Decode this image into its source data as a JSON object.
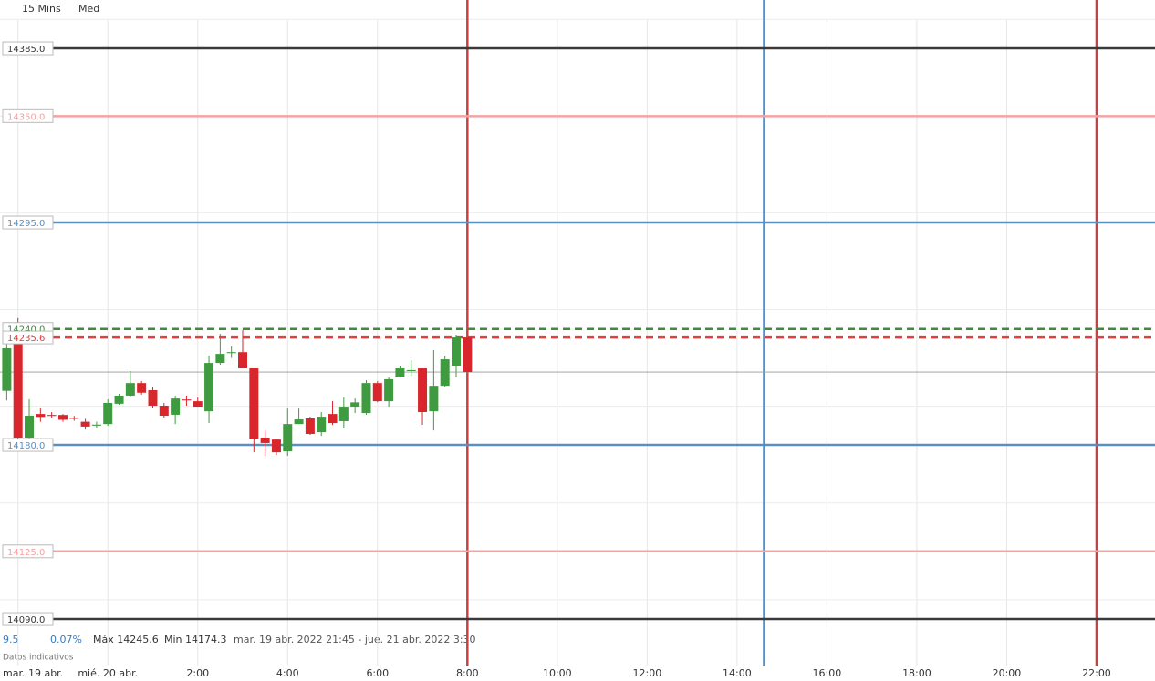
{
  "chart_data": {
    "type": "candlestick",
    "interval": "15 Mins",
    "mode": "Med",
    "info": {
      "change": "9.5",
      "change_pct": "0.07%",
      "max": "Máx 14245.6",
      "min": "Min 14174.3",
      "range": "mar. 19 abr. 2022 21:45 - jue. 21 abr. 2022 3:30",
      "note": "Datos indicativos"
    },
    "start_date_label": "mar. 19 abr.",
    "xlim": [
      -2.4,
      23.3
    ],
    "ylim": [
      14410,
      14085
    ],
    "xticks": [
      {
        "value": 0,
        "label": "mié. 20 abr."
      },
      {
        "value": 2,
        "label": "2:00"
      },
      {
        "value": 4,
        "label": "4:00"
      },
      {
        "value": 6,
        "label": "6:00"
      },
      {
        "value": 8,
        "label": "8:00"
      },
      {
        "value": 10,
        "label": "10:00"
      },
      {
        "value": 12,
        "label": "12:00"
      },
      {
        "value": 14,
        "label": "14:00"
      },
      {
        "value": 16,
        "label": "16:00"
      },
      {
        "value": 18,
        "label": "18:00"
      },
      {
        "value": 20,
        "label": "20:00"
      },
      {
        "value": 22,
        "label": "22:00"
      }
    ],
    "xgrid": [
      -2,
      0,
      2,
      4,
      6,
      8,
      10,
      12,
      14,
      16,
      18,
      20,
      22
    ],
    "ygrid": [
      14400,
      14350,
      14300,
      14250,
      14200,
      14150,
      14100
    ],
    "grid": true,
    "up_color": "#3f9b3f",
    "down_color": "#d9262c",
    "x": [
      -2.25,
      -2,
      -1.75,
      -1.5,
      -1.25,
      -1,
      -0.75,
      -0.5,
      -0.25,
      0,
      0.25,
      0.5,
      0.75,
      1,
      1.25,
      1.5,
      1.75,
      2,
      2.25,
      2.5,
      2.75,
      3,
      3.25,
      3.5,
      3.75,
      4,
      4.25,
      4.5,
      4.75,
      5,
      5.25,
      5.5,
      5.75,
      6,
      6.25,
      6.5,
      6.75,
      7,
      7.25,
      7.5,
      7.75,
      8
    ],
    "open": [
      14208,
      14235.6,
      14183.8,
      14196,
      14195.5,
      14195.5,
      14194,
      14192,
      14190,
      14190.8,
      14201.3,
      14205.5,
      14212,
      14208.3,
      14200.3,
      14195.6,
      14203.5,
      14202.6,
      14197.4,
      14222.4,
      14227.5,
      14228,
      14219.6,
      14183.8,
      14182.8,
      14176.7,
      14190.8,
      14193.7,
      14186.6,
      14196,
      14192.3,
      14199.8,
      14196.5,
      14212,
      14202.6,
      14214.9,
      14218.2,
      14219.6,
      14197.4,
      14210.6,
      14220.9,
      14235.6
    ],
    "high": [
      14233,
      14245.6,
      14203.6,
      14199,
      14197,
      14196,
      14195,
      14193.5,
      14192,
      14203.6,
      14206.4,
      14218.2,
      14213,
      14210,
      14201.7,
      14205.5,
      14205.5,
      14204.5,
      14226.2,
      14237.5,
      14231,
      14239.4,
      14219.6,
      14187.5,
      14182.8,
      14198.8,
      14198.8,
      14194.6,
      14197,
      14202.6,
      14204.5,
      14204,
      14213.5,
      14213,
      14214.9,
      14221,
      14223.8,
      14219.6,
      14229,
      14226.2,
      14236.6,
      14235.6
    ],
    "low": [
      14203,
      14182.8,
      14179.9,
      14192,
      14194,
      14192,
      14192.5,
      14188,
      14188.5,
      14189.9,
      14200.8,
      14204.5,
      14206,
      14199.3,
      14194.1,
      14190.8,
      14200.3,
      14199.8,
      14191.3,
      14221.5,
      14225,
      14219.6,
      14176.2,
      14174.3,
      14174.8,
      14174.4,
      14190.8,
      14185.2,
      14184.7,
      14190.3,
      14188.5,
      14196.5,
      14195.6,
      14202.1,
      14199.8,
      14214.9,
      14215.8,
      14190.4,
      14187.5,
      14210.2,
      14214.9,
      14217.7
    ],
    "close": [
      14230,
      14183.8,
      14195.1,
      14194.5,
      14195,
      14193,
      14193.5,
      14189.5,
      14190.5,
      14201.7,
      14205.5,
      14212,
      14207,
      14200.3,
      14195.1,
      14204,
      14203,
      14199.8,
      14222.4,
      14227.1,
      14228,
      14219.6,
      14183.3,
      14181,
      14176.2,
      14190.8,
      14193.2,
      14185.7,
      14194.6,
      14191.3,
      14199.8,
      14202,
      14212,
      14202.6,
      14214,
      14219.6,
      14218.7,
      14197,
      14210.6,
      14224.3,
      14235.6,
      14217.7
    ],
    "price_lines": [
      {
        "value": 14385,
        "label": "14385.0",
        "color": "#3a3a3a",
        "dashed": false
      },
      {
        "value": 14350,
        "label": "14350.0",
        "color": "#f2a3a3",
        "dashed": false
      },
      {
        "value": 14295,
        "label": "14295.0",
        "color": "#5b8fc2",
        "dashed": false
      },
      {
        "value": 14240,
        "label": "14240.0",
        "color": "#3f8a3f",
        "dashed": true
      },
      {
        "value": 14235.6,
        "label": "14235.6",
        "color": "#e0403f",
        "dashed": true
      },
      {
        "value": 14180,
        "label": "14180.0",
        "color": "#5b8fc2",
        "dashed": false
      },
      {
        "value": 14125,
        "label": "14125.0",
        "color": "#f2a3a3",
        "dashed": false
      },
      {
        "value": 14090,
        "label": "14090.0",
        "color": "#3a3a3a",
        "dashed": false
      }
    ],
    "vertical_lines": [
      {
        "x": 8,
        "color": "#c94040"
      },
      {
        "x": 14.6,
        "color": "#5b8fc2"
      },
      {
        "x": 22,
        "color": "#c94040"
      }
    ]
  }
}
